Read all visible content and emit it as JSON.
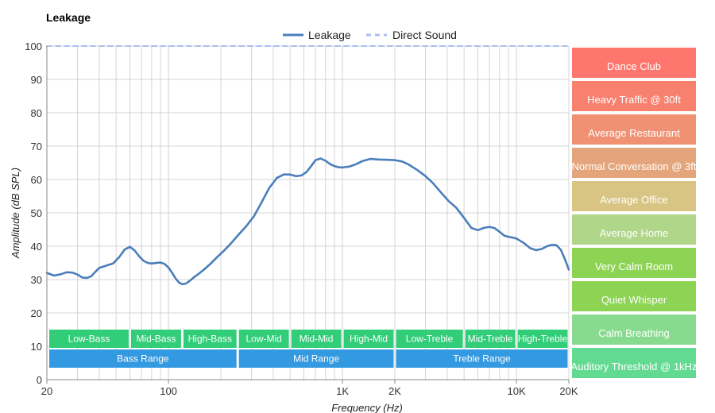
{
  "chart_data": {
    "type": "line",
    "title": "Leakage",
    "xlabel": "Frequency (Hz)",
    "ylabel": "Amplitude (dB SPL)",
    "x_scale": "log",
    "xlim": [
      20,
      20000
    ],
    "ylim": [
      0,
      100
    ],
    "grid": true,
    "legend_position": "top-center",
    "x_ticks": [
      {
        "value": 20,
        "label": "20"
      },
      {
        "value": 100,
        "label": "100"
      },
      {
        "value": 1000,
        "label": "1K"
      },
      {
        "value": 2000,
        "label": "2K"
      },
      {
        "value": 10000,
        "label": "10K"
      },
      {
        "value": 20000,
        "label": "20K"
      }
    ],
    "y_ticks": [
      {
        "value": 0,
        "label": "0"
      },
      {
        "value": 10,
        "label": "10"
      },
      {
        "value": 20,
        "label": "20"
      },
      {
        "value": 30,
        "label": "30"
      },
      {
        "value": 40,
        "label": "40"
      },
      {
        "value": 50,
        "label": "50"
      },
      {
        "value": 60,
        "label": "60"
      },
      {
        "value": 70,
        "label": "70"
      },
      {
        "value": 80,
        "label": "80"
      },
      {
        "value": 90,
        "label": "90"
      },
      {
        "value": 100,
        "label": "100"
      }
    ],
    "series": [
      {
        "name": "Leakage",
        "color": "#4a7ebb",
        "style": "solid",
        "x": [
          20,
          22,
          24,
          26,
          28,
          30,
          32,
          34,
          36,
          38,
          40,
          44,
          48,
          52,
          56,
          60,
          64,
          68,
          72,
          76,
          80,
          85,
          90,
          95,
          100,
          105,
          110,
          115,
          120,
          126,
          133,
          140,
          150,
          160,
          175,
          190,
          210,
          230,
          250,
          280,
          310,
          340,
          380,
          420,
          460,
          500,
          540,
          580,
          620,
          660,
          700,
          750,
          800,
          850,
          900,
          950,
          1000,
          1100,
          1200,
          1300,
          1450,
          1600,
          1800,
          2000,
          2200,
          2400,
          2700,
          3000,
          3300,
          3700,
          4100,
          4500,
          5000,
          5500,
          6000,
          6500,
          7000,
          7500,
          8000,
          8500,
          9000,
          9500,
          10000,
          11000,
          12000,
          13000,
          14000,
          15000,
          16000,
          17000,
          18000,
          19000,
          20000
        ],
        "values": [
          32,
          31.2,
          31.6,
          32.2,
          32.1,
          31.5,
          30.6,
          30.5,
          31.0,
          32.3,
          33.5,
          34.2,
          34.8,
          36.7,
          39.0,
          39.8,
          38.7,
          36.9,
          35.6,
          35.0,
          34.8,
          35.0,
          35.1,
          34.7,
          33.6,
          32.0,
          30.3,
          29.1,
          28.6,
          28.8,
          29.7,
          30.7,
          31.8,
          33.0,
          34.8,
          36.7,
          38.8,
          41.0,
          43.2,
          46.0,
          49.0,
          52.8,
          57.5,
          60.5,
          61.5,
          61.5,
          61.0,
          61.2,
          62.2,
          64.0,
          65.8,
          66.3,
          65.6,
          64.6,
          64.0,
          63.7,
          63.6,
          63.9,
          64.6,
          65.5,
          66.2,
          66.0,
          65.9,
          65.8,
          65.4,
          64.5,
          62.8,
          61.0,
          59.0,
          56.0,
          53.4,
          51.6,
          48.5,
          45.5,
          44.8,
          45.5,
          45.8,
          45.4,
          44.3,
          43.2,
          42.8,
          42.6,
          42.3,
          41.0,
          39.4,
          38.8,
          39.2,
          40.0,
          40.4,
          40.3,
          38.9,
          36.1,
          33.0
        ]
      },
      {
        "name": "Direct Sound",
        "color": "#a8c0f0",
        "style": "dashed",
        "x": [
          20,
          20000
        ],
        "values": [
          100,
          100
        ]
      }
    ],
    "annotations": {
      "bands_row1": [
        {
          "label": "Low-Bass",
          "from": 20,
          "to": 60
        },
        {
          "label": "Mid-Bass",
          "from": 60,
          "to": 120
        },
        {
          "label": "High-Bass",
          "from": 120,
          "to": 250
        },
        {
          "label": "Low-Mid",
          "from": 250,
          "to": 500
        },
        {
          "label": "Mid-Mid",
          "from": 500,
          "to": 1000
        },
        {
          "label": "High-Mid",
          "from": 1000,
          "to": 2000
        },
        {
          "label": "Low-Treble",
          "from": 2000,
          "to": 5000
        },
        {
          "label": "Mid-Treble",
          "from": 5000,
          "to": 10000
        },
        {
          "label": "High-Treble",
          "from": 10000,
          "to": 20000
        }
      ],
      "bands_row2": [
        {
          "label": "Bass Range",
          "from": 20,
          "to": 250
        },
        {
          "label": "Mid Range",
          "from": 250,
          "to": 2000
        },
        {
          "label": "Treble Range",
          "from": 2000,
          "to": 20000
        }
      ],
      "environments": [
        {
          "label": "Dance Club",
          "level": 100,
          "color": "#fe766e"
        },
        {
          "label": "Heavy Traffic @ 30ft",
          "level": 90,
          "color": "#f8806f"
        },
        {
          "label": "Average Restaurant",
          "level": 80,
          "color": "#f09173"
        },
        {
          "label": "Normal Conversation @ 3ft",
          "level": 70,
          "color": "#e4a57c"
        },
        {
          "label": "Average Office",
          "level": 60,
          "color": "#d8c583"
        },
        {
          "label": "Average Home",
          "level": 50,
          "color": "#b0d68a"
        },
        {
          "label": "Very Calm Room",
          "level": 40,
          "color": "#8ed454"
        },
        {
          "label": "Quiet Whisper",
          "level": 30,
          "color": "#8ed454"
        },
        {
          "label": "Calm Breathing",
          "level": 20,
          "color": "#88db8e"
        },
        {
          "label": "Auditory Threshold @ 1kHz",
          "level": 10,
          "color": "#63da92"
        }
      ],
      "band_colors": {
        "row1": "#32cd78",
        "row2": "#3399e0"
      }
    }
  }
}
